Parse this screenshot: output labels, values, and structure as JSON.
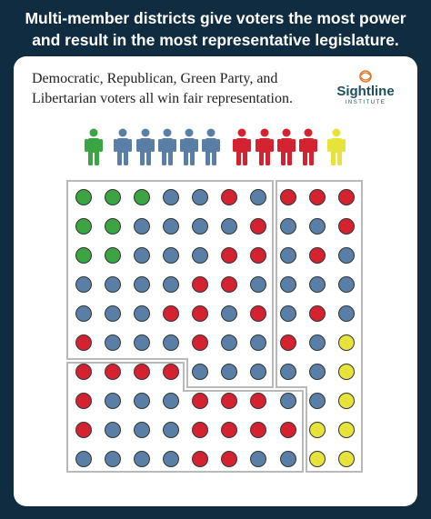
{
  "headline": {
    "line1": "Multi-member districts give voters the most power",
    "line2": "and result in the most representative legislature."
  },
  "subtitle": {
    "line1": "Democratic, Republican, Green Party, and",
    "line2": "Libertarian voters all win fair representation."
  },
  "logo": {
    "name": "Sightline",
    "sub": "INSTITUTE",
    "icon": "sightline-spiral-icon"
  },
  "colors": {
    "green": "#3aa542",
    "blue": "#5a7fa6",
    "red": "#d32330",
    "yellow": "#e8e33a",
    "background": "#0f2c40",
    "district_border": "#b9b9b9"
  },
  "representatives": [
    "green",
    "blue",
    "blue",
    "blue",
    "blue",
    "blue",
    "red",
    "red",
    "red",
    "red",
    "yellow"
  ],
  "voter_grid": [
    [
      "green",
      "green",
      "green",
      "blue",
      "blue",
      "red",
      "blue",
      "red",
      "red",
      "red"
    ],
    [
      "green",
      "green",
      "blue",
      "blue",
      "blue",
      "blue",
      "red",
      "blue",
      "blue",
      "red"
    ],
    [
      "green",
      "green",
      "blue",
      "blue",
      "blue",
      "red",
      "red",
      "blue",
      "red",
      "blue"
    ],
    [
      "blue",
      "blue",
      "blue",
      "blue",
      "red",
      "red",
      "blue",
      "blue",
      "blue",
      "blue"
    ],
    [
      "blue",
      "blue",
      "blue",
      "red",
      "red",
      "blue",
      "red",
      "blue",
      "red",
      "blue"
    ],
    [
      "red",
      "blue",
      "blue",
      "blue",
      "red",
      "blue",
      "blue",
      "red",
      "blue",
      "yellow"
    ],
    [
      "red",
      "red",
      "red",
      "red",
      "blue",
      "blue",
      "blue",
      "blue",
      "blue",
      "yellow"
    ],
    [
      "red",
      "blue",
      "blue",
      "blue",
      "red",
      "red",
      "red",
      "blue",
      "blue",
      "yellow"
    ],
    [
      "red",
      "blue",
      "blue",
      "blue",
      "red",
      "red",
      "red",
      "red",
      "yellow",
      "yellow"
    ],
    [
      "blue",
      "blue",
      "blue",
      "blue",
      "red",
      "red",
      "blue",
      "blue",
      "yellow",
      "yellow"
    ]
  ]
}
